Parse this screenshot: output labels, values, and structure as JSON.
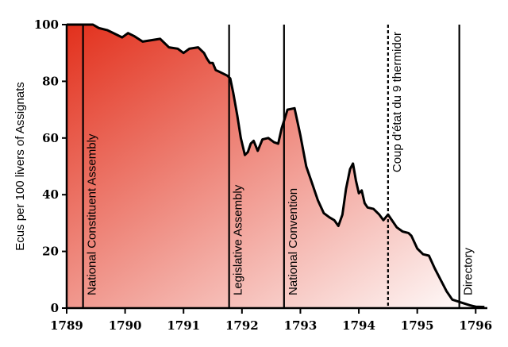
{
  "chart_data": {
    "type": "area",
    "title": "",
    "xlabel": "",
    "ylabel": "Ecus per 100 livers of Assignats",
    "xlim": [
      1789,
      1796.2
    ],
    "ylim": [
      0,
      100
    ],
    "x_ticks": [
      1789,
      1790,
      1791,
      1792,
      1793,
      1794,
      1795,
      1796
    ],
    "x_tick_labels": [
      "1789",
      "1790",
      "1791",
      "1792",
      "1793",
      "1794",
      "1795",
      "1796"
    ],
    "y_ticks": [
      0,
      20,
      40,
      60,
      80,
      100
    ],
    "y_tick_labels": [
      "0",
      "20",
      "40",
      "60",
      "80",
      "100"
    ],
    "gradient": {
      "start": "#e2301c",
      "end": "#ffffff"
    },
    "series": [
      {
        "points": [
          [
            1789.0,
            100
          ],
          [
            1789.45,
            100
          ],
          [
            1789.55,
            98.8
          ],
          [
            1789.7,
            98
          ],
          [
            1789.85,
            96.5
          ],
          [
            1789.95,
            95.5
          ],
          [
            1790.05,
            97
          ],
          [
            1790.15,
            96
          ],
          [
            1790.3,
            94
          ],
          [
            1790.45,
            94.5
          ],
          [
            1790.6,
            95
          ],
          [
            1790.75,
            92
          ],
          [
            1790.9,
            91.5
          ],
          [
            1791.0,
            90
          ],
          [
            1791.1,
            91.5
          ],
          [
            1791.25,
            92
          ],
          [
            1791.35,
            90
          ],
          [
            1791.4,
            88
          ],
          [
            1791.45,
            86.5
          ],
          [
            1791.5,
            86.5
          ],
          [
            1791.55,
            84
          ],
          [
            1791.65,
            83
          ],
          [
            1791.75,
            82
          ],
          [
            1791.8,
            81
          ],
          [
            1791.85,
            76
          ],
          [
            1791.92,
            68
          ],
          [
            1791.98,
            60
          ],
          [
            1792.05,
            54
          ],
          [
            1792.1,
            55
          ],
          [
            1792.15,
            58
          ],
          [
            1792.2,
            59
          ],
          [
            1792.27,
            55.5
          ],
          [
            1792.35,
            59.5
          ],
          [
            1792.45,
            60
          ],
          [
            1792.55,
            58.5
          ],
          [
            1792.62,
            58
          ],
          [
            1792.68,
            63.5
          ],
          [
            1792.72,
            66
          ],
          [
            1792.78,
            70
          ],
          [
            1792.9,
            70.5
          ],
          [
            1793.0,
            61
          ],
          [
            1793.1,
            50
          ],
          [
            1793.2,
            44
          ],
          [
            1793.3,
            38
          ],
          [
            1793.4,
            33.5
          ],
          [
            1793.5,
            32
          ],
          [
            1793.58,
            31
          ],
          [
            1793.65,
            29
          ],
          [
            1793.72,
            33
          ],
          [
            1793.78,
            42
          ],
          [
            1793.85,
            49
          ],
          [
            1793.9,
            51
          ],
          [
            1793.95,
            45
          ],
          [
            1794.0,
            40.5
          ],
          [
            1794.05,
            41.5
          ],
          [
            1794.1,
            37
          ],
          [
            1794.15,
            35.5
          ],
          [
            1794.25,
            35
          ],
          [
            1794.35,
            33
          ],
          [
            1794.42,
            31
          ],
          [
            1794.5,
            33
          ],
          [
            1794.55,
            31.5
          ],
          [
            1794.65,
            28.5
          ],
          [
            1794.75,
            27
          ],
          [
            1794.85,
            26.5
          ],
          [
            1794.9,
            25.5
          ],
          [
            1795.0,
            21
          ],
          [
            1795.1,
            19
          ],
          [
            1795.2,
            18.5
          ],
          [
            1795.3,
            14
          ],
          [
            1795.4,
            10
          ],
          [
            1795.5,
            6
          ],
          [
            1795.6,
            3
          ],
          [
            1795.75,
            2
          ],
          [
            1795.9,
            1
          ],
          [
            1796.0,
            0.5
          ],
          [
            1796.15,
            0.4
          ]
        ]
      }
    ],
    "events": [
      {
        "x": 1789.28,
        "label": "National Constituent Assembly",
        "style": "solid"
      },
      {
        "x": 1791.78,
        "label": "Legislative Assembly",
        "style": "solid"
      },
      {
        "x": 1792.72,
        "label": "National Convention",
        "style": "solid"
      },
      {
        "x": 1794.5,
        "label": "Coup d'état du 9 thermidor",
        "style": "dashed"
      },
      {
        "x": 1795.72,
        "label": "Directory",
        "style": "solid"
      }
    ]
  }
}
